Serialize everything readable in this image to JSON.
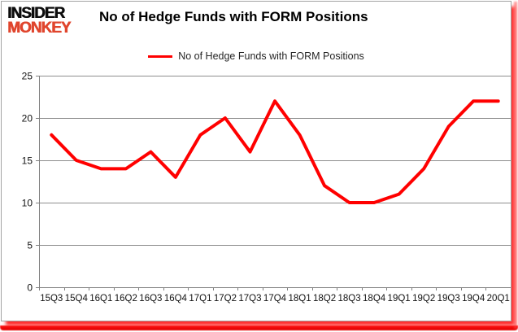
{
  "logo": {
    "line1": "INSIDER",
    "line2": "MONKEY"
  },
  "title": "No of Hedge Funds with FORM Positions",
  "legend": {
    "label": "No of Hedge Funds with FORM Positions",
    "marker_color": "#FF0000"
  },
  "colors": {
    "line": "#FF0000",
    "grid": "#8E8E8E",
    "axis": "#808080",
    "frame_border": "#A3A3A3",
    "logo_black": "#0D0D0D",
    "logo_red": "#E0452D",
    "accent_bar": "#FF0000",
    "tick_text": "#111111"
  },
  "chart_data": {
    "type": "line",
    "title": "No of Hedge Funds with FORM Positions",
    "categories": [
      "15Q3",
      "15Q4",
      "16Q1",
      "16Q2",
      "16Q3",
      "16Q4",
      "17Q1",
      "17Q2",
      "17Q3",
      "17Q4",
      "18Q1",
      "18Q2",
      "18Q3",
      "18Q4",
      "19Q1",
      "19Q2",
      "19Q3",
      "19Q4",
      "20Q1"
    ],
    "series": [
      {
        "name": "No of Hedge Funds with FORM Positions",
        "color": "#FF0000",
        "values": [
          18,
          15,
          14,
          14,
          16,
          13,
          18,
          20,
          16,
          22,
          18,
          12,
          10,
          10,
          11,
          14,
          19,
          22,
          22
        ]
      }
    ],
    "xlabel": "",
    "ylabel": "",
    "ylim": [
      0,
      25
    ],
    "yticks": [
      0,
      5,
      10,
      15,
      20,
      25
    ],
    "grid": true,
    "legend_position": "top-center"
  }
}
